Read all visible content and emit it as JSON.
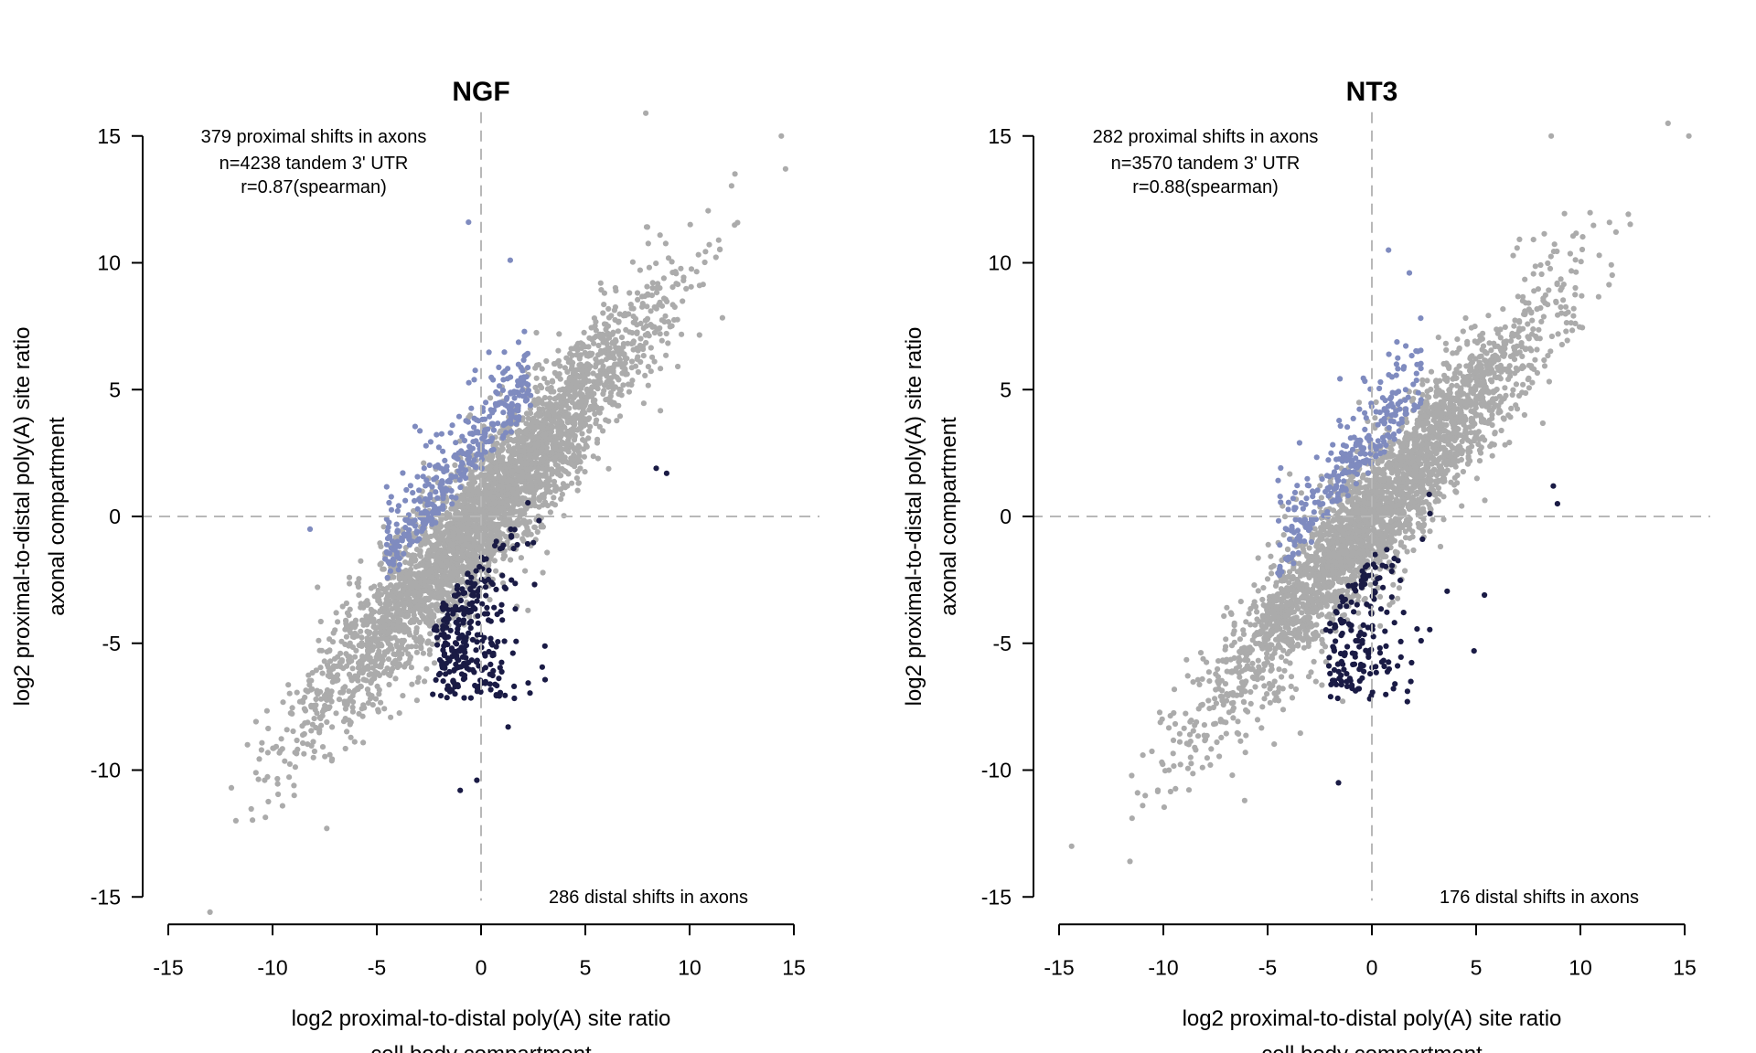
{
  "colors": {
    "background": "#ffffff",
    "other_points": "#ababab",
    "proximal_shift": "#7f8bbf",
    "distal_shift": "#1a1b45",
    "axis": "#000000",
    "reference_lines": "#b8b8b8"
  },
  "chart_data": [
    {
      "type": "scatter",
      "title": "NGF",
      "xlabel": [
        "log2 proximal-to-distal poly(A) site ratio",
        "cell body compartment"
      ],
      "ylabel": [
        "log2 proximal-to-distal poly(A) site ratio",
        "axonal compartment"
      ],
      "xlim": [
        -15,
        15
      ],
      "ylim": [
        -15,
        15
      ],
      "xticks": [
        -15,
        -10,
        -5,
        0,
        5,
        10,
        15
      ],
      "yticks": [
        -15,
        -10,
        -5,
        0,
        5,
        10,
        15
      ],
      "xtick_labels": [
        "-15",
        "-10",
        "-5",
        "0",
        "5",
        "10",
        "15"
      ],
      "ytick_labels": [
        "-15",
        "-10",
        "-5",
        "0",
        "5",
        "10",
        "15"
      ],
      "reference_lines": {
        "x": 0,
        "y": 0,
        "style": "dashed"
      },
      "grid": false,
      "annotations": {
        "proximal": "379 proximal shifts in axons",
        "n": "n=4238 tandem 3' UTR",
        "r": "r=0.87(spearman)",
        "distal": "286 distal shifts in axons"
      },
      "counts": {
        "total": 4238,
        "proximal": 379,
        "distal": 286
      },
      "spearman_r": 0.87,
      "outliers": {
        "grey": [
          [
            -13.0,
            -15.6
          ],
          [
            7.9,
            15.9
          ],
          [
            14.4,
            15.0
          ],
          [
            14.6,
            13.7
          ],
          [
            -11.2,
            -9.0
          ],
          [
            -10.8,
            -10.1
          ],
          [
            -7.4,
            -12.3
          ]
        ],
        "proximal": [
          [
            -0.6,
            11.6
          ],
          [
            -8.2,
            -0.5
          ],
          [
            1.4,
            10.1
          ]
        ],
        "distal": [
          [
            -1.0,
            -10.8
          ],
          [
            -0.2,
            -10.4
          ],
          [
            8.4,
            1.9
          ],
          [
            8.9,
            1.7
          ],
          [
            1.3,
            -8.3
          ]
        ]
      }
    },
    {
      "type": "scatter",
      "title": "NT3",
      "xlabel": [
        "log2 proximal-to-distal poly(A) site ratio",
        "cell body compartment"
      ],
      "ylabel": [
        "log2 proximal-to-distal poly(A) site ratio",
        "axonal compartment"
      ],
      "xlim": [
        -15,
        15
      ],
      "ylim": [
        -15,
        15
      ],
      "xticks": [
        -15,
        -10,
        -5,
        0,
        5,
        10,
        15
      ],
      "yticks": [
        -15,
        -10,
        -5,
        0,
        5,
        10,
        15
      ],
      "xtick_labels": [
        "-15",
        "-10",
        "-5",
        "0",
        "5",
        "10",
        "15"
      ],
      "ytick_labels": [
        "-15",
        "-10",
        "-5",
        "0",
        "5",
        "10",
        "15"
      ],
      "reference_lines": {
        "x": 0,
        "y": 0,
        "style": "dashed"
      },
      "grid": false,
      "annotations": {
        "proximal": "282 proximal shifts in axons",
        "n": "n=3570 tandem 3' UTR",
        "r": "r=0.88(spearman)",
        "distal": "176 distal shifts in axons"
      },
      "counts": {
        "total": 3570,
        "proximal": 282,
        "distal": 176
      },
      "spearman_r": 0.88,
      "outliers": {
        "grey": [
          [
            -14.4,
            -13.0
          ],
          [
            -11.6,
            -13.6
          ],
          [
            -11.5,
            -11.9
          ],
          [
            14.2,
            15.5
          ],
          [
            15.2,
            15.0
          ],
          [
            8.6,
            15.0
          ],
          [
            -6.1,
            -11.2
          ]
        ],
        "proximal": [
          [
            0.8,
            10.5
          ],
          [
            1.8,
            9.6
          ]
        ],
        "distal": [
          [
            -1.6,
            -10.5
          ],
          [
            1.7,
            -7.3
          ],
          [
            8.7,
            1.2
          ],
          [
            8.9,
            0.5
          ],
          [
            5.4,
            -3.1
          ],
          [
            4.9,
            -5.3
          ]
        ]
      }
    }
  ]
}
